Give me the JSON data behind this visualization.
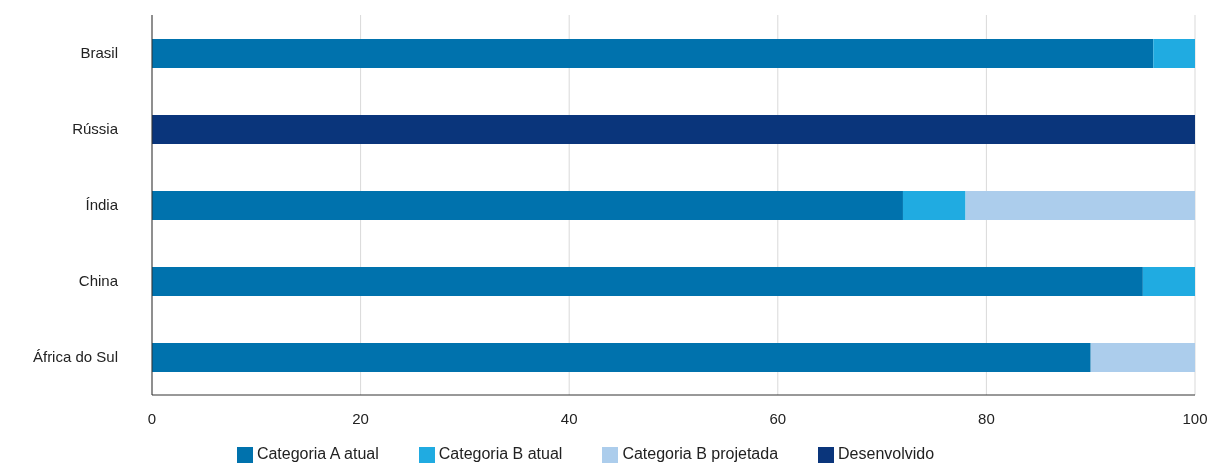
{
  "chart_data": {
    "type": "bar",
    "orientation": "horizontal",
    "stacked": true,
    "categories": [
      "Brasil",
      "Rússia",
      "Índia",
      "China",
      "África do Sul"
    ],
    "series": [
      {
        "name": "Desenvolvido",
        "color": "#0a357b",
        "values": [
          null,
          100,
          null,
          null,
          null
        ]
      },
      {
        "name": "Categoria A atual",
        "color": "#0072ad",
        "values": [
          96,
          null,
          72,
          95,
          90
        ]
      },
      {
        "name": "Categoria B atual",
        "color": "#20abe1",
        "values": [
          4,
          null,
          6,
          5,
          null
        ]
      },
      {
        "name": "Categoria B projetada",
        "color": "#accdec",
        "values": [
          null,
          null,
          22,
          null,
          10
        ]
      }
    ],
    "xlim": [
      0,
      100
    ],
    "xticks": [
      0,
      20,
      40,
      60,
      80,
      100
    ],
    "grid": "x",
    "legend": "bottom"
  }
}
